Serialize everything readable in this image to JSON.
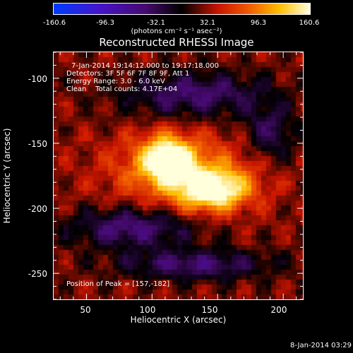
{
  "colorbar": {
    "ticks": [
      "-160.6",
      "-96.3",
      "-32.1",
      "32.1",
      "96.3",
      "160.6"
    ],
    "units": "(photons cm⁻² s⁻¹ asec⁻²)"
  },
  "title": "Reconstructed RHESSI Image",
  "annotations": {
    "time": "7-Jan-2014 19:14:12.000 to 19:17:18.000",
    "detectors": "Detectors: 3F 5F 6F 7F 8F 9F, Att 1",
    "energy": "Energy Range: 3.0 - 6.0 keV",
    "clean": "Clean    Total counts: 4.17E+04",
    "peak": "Position of Peak = [157,-182]"
  },
  "axes": {
    "xlabel": "Heliocentric X (arcsec)",
    "ylabel": "Heliocentric Y (arcsec)",
    "xticks": [
      "50",
      "100",
      "150",
      "200"
    ],
    "yticks": [
      "-100",
      "-150",
      "-200",
      "-250"
    ],
    "xrange": [
      25,
      215
    ],
    "yrange": [
      -270,
      -80
    ]
  },
  "date_stamp": "8-Jan-2014 03:29"
}
